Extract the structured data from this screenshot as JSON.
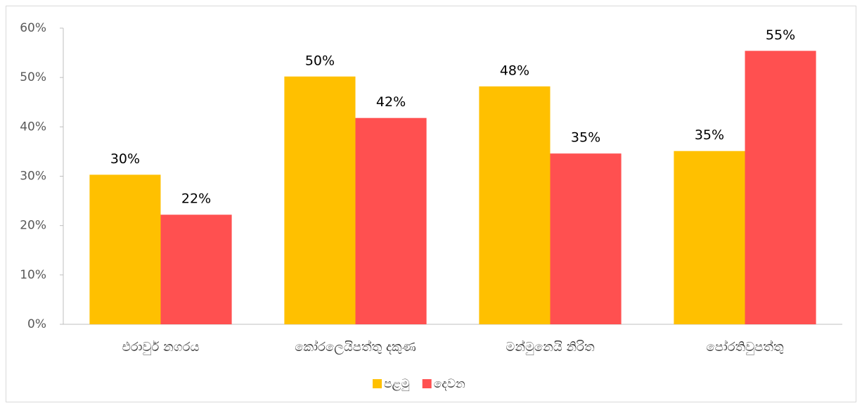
{
  "chart_data": {
    "type": "bar",
    "categories": [
      "එරාවුර් නගරය",
      "කෝරලෙයිපත්තු දකුණ",
      "මන්මුනෙයි නිරිත",
      "පෝරතිවුපත්තු"
    ],
    "series": [
      {
        "name": "පළමු",
        "color": "#FFC000",
        "values": [
          30.3,
          50.2,
          48.2,
          35.1
        ],
        "value_labels": [
          "30%",
          "50%",
          "48%",
          "35%"
        ]
      },
      {
        "name": "දෙවන",
        "color": "#FF5050",
        "values": [
          22.2,
          41.8,
          34.6,
          55.4
        ],
        "value_labels": [
          "22%",
          "42%",
          "35%",
          "55%"
        ]
      }
    ],
    "ylim": [
      0,
      60
    ],
    "yticks": [
      {
        "value": 0,
        "label": "0%"
      },
      {
        "value": 10,
        "label": "10%"
      },
      {
        "value": 20,
        "label": "20%"
      },
      {
        "value": 30,
        "label": "30%"
      },
      {
        "value": 40,
        "label": "40%"
      },
      {
        "value": 50,
        "label": "50%"
      },
      {
        "value": 60,
        "label": "60%"
      }
    ],
    "grid": false,
    "legend": "bottom"
  }
}
